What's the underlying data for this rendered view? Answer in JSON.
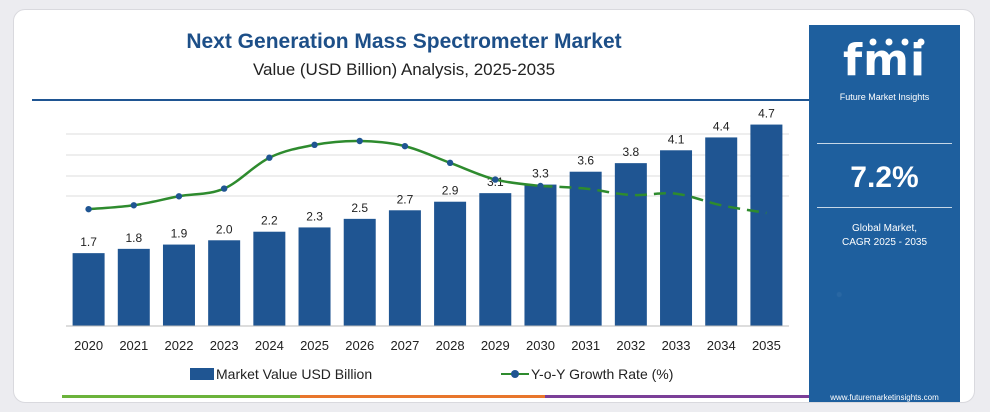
{
  "header": {
    "title": "Next Generation Mass Spectrometer Market",
    "subtitle": "Value (USD Billion) Analysis, 2025-2035"
  },
  "sidebar": {
    "logo_text": "fmi",
    "tagline": "Future Market Insights",
    "cagr_value": "7.2%",
    "cagr_label_line1": "Global Market,",
    "cagr_label_line2": "CAGR 2025 - 2035",
    "website": "www.futuremarketinsights.com",
    "background_color": "#1e5f9e"
  },
  "chart_data": {
    "type": "bar",
    "title": "Next Generation Mass Spectrometer Market",
    "subtitle": "Value (USD Billion) Analysis, 2025-2035",
    "categories": [
      "2020",
      "2021",
      "2022",
      "2023",
      "2024",
      "2025",
      "2026",
      "2027",
      "2028",
      "2029",
      "2030",
      "2031",
      "2032",
      "2033",
      "2034",
      "2035"
    ],
    "series": [
      {
        "name": "Market Value USD Billion",
        "type": "bar",
        "color": "#1f5592",
        "values": [
          1.7,
          1.8,
          1.9,
          2.0,
          2.2,
          2.3,
          2.5,
          2.7,
          2.9,
          3.1,
          3.3,
          3.6,
          3.8,
          4.1,
          4.4,
          4.7
        ],
        "labels": [
          "1.7",
          "1.8",
          "1.9",
          "2.0",
          "2.2",
          "2.3",
          "2.5",
          "2.7",
          "2.9",
          "3.1",
          "3.3",
          "3.6",
          "3.8",
          "4.1",
          "4.4",
          "4.7"
        ]
      },
      {
        "name": "Y-o-Y Growth Rate (%)",
        "type": "line",
        "color": "#2e8b2e",
        "marker_color": "#1f5592",
        "solid_until_index": 10,
        "values": [
          5.9,
          6.2,
          6.9,
          7.5,
          9.9,
          10.9,
          11.2,
          10.8,
          9.5,
          8.2,
          7.7,
          7.5,
          7.0,
          7.1,
          6.2,
          5.6
        ]
      }
    ],
    "ylim_bars": [
      0,
      4.9
    ],
    "grid": true,
    "legend_position": "bottom"
  },
  "legend": {
    "bar_label": "Market Value USD Billion",
    "line_label": "Y-o-Y Growth Rate (%)"
  },
  "accent_strip_colors": [
    "#6bb33b",
    "#e8762c",
    "#7b3f98"
  ]
}
